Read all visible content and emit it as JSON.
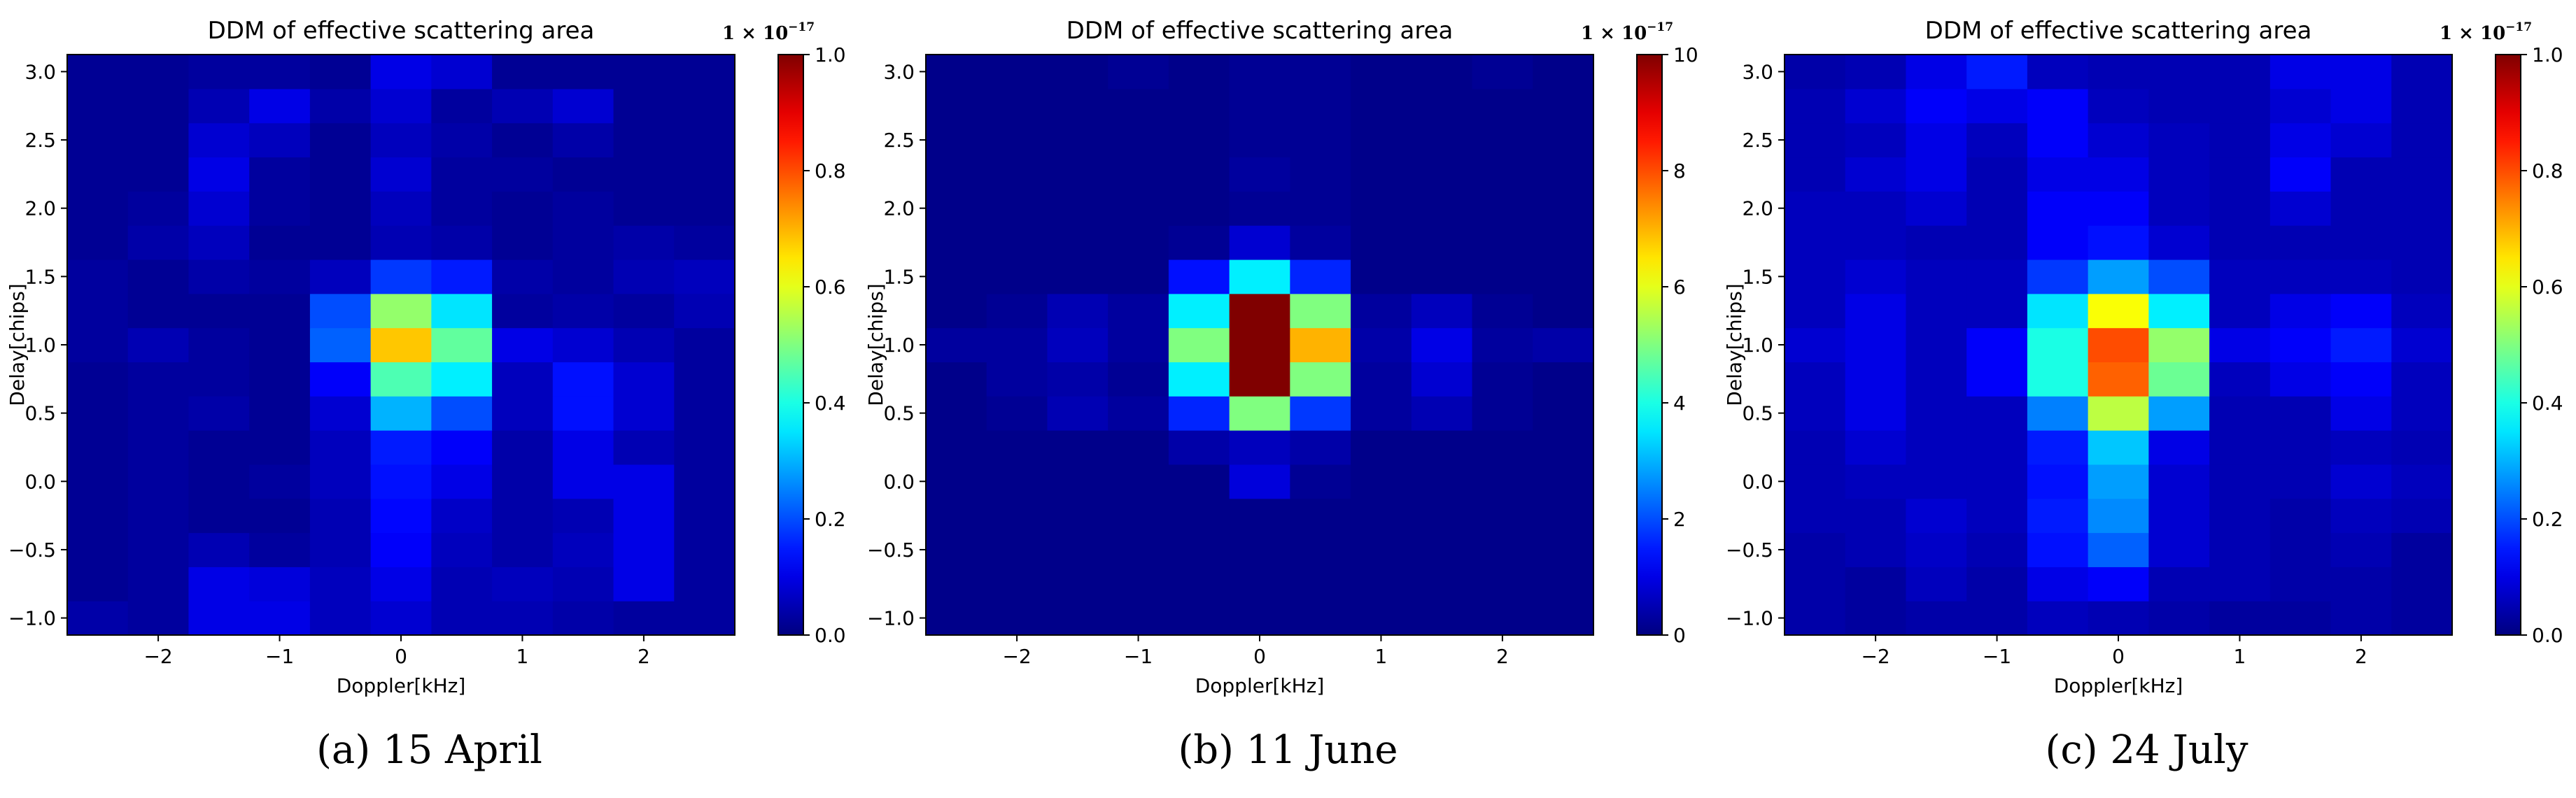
{
  "chart_data": [
    {
      "type": "heatmap",
      "title": "DDM of effective scattering area",
      "xlabel": "Doppler[kHz]",
      "ylabel": "Delay[chips]",
      "caption": "(a) 15 April",
      "xlim": [
        -2.75,
        2.75
      ],
      "ylim": [
        -1.125,
        3.125
      ],
      "x_ticks": [
        -2,
        -1,
        0,
        1,
        2
      ],
      "x_tick_labels": [
        "−2",
        "−1",
        "0",
        "1",
        "2"
      ],
      "y_ticks": [
        -1.0,
        -0.5,
        0.0,
        0.5,
        1.0,
        1.5,
        2.0,
        2.5,
        3.0
      ],
      "y_tick_labels": [
        "−1.0",
        "−0.5",
        "0.0",
        "0.5",
        "1.0",
        "1.5",
        "2.0",
        "2.5",
        "3.0"
      ],
      "doppler_centers": [
        -2.5,
        -2.0,
        -1.5,
        -1.0,
        -0.5,
        0.0,
        0.5,
        1.0,
        1.5,
        2.0,
        2.5
      ],
      "delay_centers": [
        -1.0,
        -0.75,
        -0.5,
        -0.25,
        0.0,
        0.25,
        0.5,
        0.75,
        1.0,
        1.25,
        1.5,
        1.75,
        2.0,
        2.25,
        2.5,
        2.75,
        3.0
      ],
      "colorbar": {
        "min": 0,
        "max": 1.0,
        "ticks": [
          0.0,
          0.2,
          0.4,
          0.6,
          0.8,
          1.0
        ],
        "tick_labels": [
          "0.0",
          "0.2",
          "0.4",
          "0.6",
          "0.8",
          "1.0"
        ],
        "multiplier_base": "1 × 10",
        "multiplier_exp": "−17"
      },
      "values": [
        [
          0.04,
          0.03,
          0.1,
          0.1,
          0.06,
          0.08,
          0.05,
          0.05,
          0.04,
          0.03,
          0.03
        ],
        [
          0.02,
          0.03,
          0.1,
          0.09,
          0.06,
          0.1,
          0.05,
          0.06,
          0.05,
          0.1,
          0.03
        ],
        [
          0.02,
          0.03,
          0.05,
          0.03,
          0.05,
          0.12,
          0.06,
          0.04,
          0.06,
          0.1,
          0.03
        ],
        [
          0.02,
          0.03,
          0.02,
          0.02,
          0.05,
          0.13,
          0.07,
          0.04,
          0.05,
          0.1,
          0.03
        ],
        [
          0.02,
          0.03,
          0.02,
          0.03,
          0.06,
          0.14,
          0.1,
          0.04,
          0.1,
          0.1,
          0.03
        ],
        [
          0.02,
          0.03,
          0.02,
          0.02,
          0.06,
          0.15,
          0.12,
          0.04,
          0.1,
          0.05,
          0.03
        ],
        [
          0.02,
          0.03,
          0.04,
          0.02,
          0.08,
          0.3,
          0.2,
          0.06,
          0.14,
          0.08,
          0.03
        ],
        [
          0.02,
          0.03,
          0.03,
          0.02,
          0.12,
          0.45,
          0.36,
          0.06,
          0.14,
          0.08,
          0.03
        ],
        [
          0.03,
          0.05,
          0.03,
          0.02,
          0.22,
          0.68,
          0.47,
          0.1,
          0.08,
          0.05,
          0.03
        ],
        [
          0.03,
          0.02,
          0.02,
          0.02,
          0.2,
          0.52,
          0.35,
          0.03,
          0.04,
          0.03,
          0.05
        ],
        [
          0.03,
          0.02,
          0.04,
          0.03,
          0.06,
          0.18,
          0.15,
          0.04,
          0.03,
          0.05,
          0.06
        ],
        [
          0.02,
          0.04,
          0.06,
          0.02,
          0.02,
          0.05,
          0.04,
          0.02,
          0.03,
          0.04,
          0.03
        ],
        [
          0.02,
          0.03,
          0.08,
          0.03,
          0.02,
          0.06,
          0.03,
          0.02,
          0.03,
          0.02,
          0.02
        ],
        [
          0.02,
          0.02,
          0.1,
          0.03,
          0.02,
          0.08,
          0.03,
          0.03,
          0.02,
          0.02,
          0.02
        ],
        [
          0.02,
          0.02,
          0.08,
          0.06,
          0.02,
          0.06,
          0.04,
          0.02,
          0.04,
          0.02,
          0.02
        ],
        [
          0.02,
          0.02,
          0.05,
          0.1,
          0.04,
          0.08,
          0.03,
          0.05,
          0.08,
          0.02,
          0.02
        ],
        [
          0.02,
          0.02,
          0.03,
          0.03,
          0.02,
          0.1,
          0.08,
          0.02,
          0.02,
          0.02,
          0.02
        ]
      ]
    },
    {
      "type": "heatmap",
      "title": "DDM of effective scattering area",
      "xlabel": "Doppler[kHz]",
      "ylabel": "Delay[chips]",
      "caption": "(b) 11 June",
      "xlim": [
        -2.75,
        2.75
      ],
      "ylim": [
        -1.125,
        3.125
      ],
      "x_ticks": [
        -2,
        -1,
        0,
        1,
        2
      ],
      "x_tick_labels": [
        "−2",
        "−1",
        "0",
        "1",
        "2"
      ],
      "y_ticks": [
        -1.0,
        -0.5,
        0.0,
        0.5,
        1.0,
        1.5,
        2.0,
        2.5,
        3.0
      ],
      "y_tick_labels": [
        "−1.0",
        "−0.5",
        "0.0",
        "0.5",
        "1.0",
        "1.5",
        "2.0",
        "2.5",
        "3.0"
      ],
      "doppler_centers": [
        -2.5,
        -2.0,
        -1.5,
        -1.0,
        -0.5,
        0.0,
        0.5,
        1.0,
        1.5,
        2.0,
        2.5
      ],
      "delay_centers": [
        -1.0,
        -0.75,
        -0.5,
        -0.25,
        0.0,
        0.25,
        0.5,
        0.75,
        1.0,
        1.25,
        1.5,
        1.75,
        2.0,
        2.25,
        2.5,
        2.75,
        3.0
      ],
      "colorbar": {
        "min": 0,
        "max": 10,
        "ticks": [
          0,
          2,
          4,
          6,
          8,
          10
        ],
        "tick_labels": [
          "0",
          "2",
          "4",
          "6",
          "8",
          "10"
        ],
        "multiplier_base": "1 × 10",
        "multiplier_exp": "−17"
      },
      "values": [
        [
          0.1,
          0.1,
          0.1,
          0.1,
          0.1,
          0.1,
          0.1,
          0.1,
          0.1,
          0.1,
          0.1
        ],
        [
          0.1,
          0.1,
          0.1,
          0.1,
          0.1,
          0.1,
          0.1,
          0.1,
          0.1,
          0.1,
          0.1
        ],
        [
          0.1,
          0.1,
          0.1,
          0.1,
          0.1,
          0.1,
          0.1,
          0.1,
          0.1,
          0.1,
          0.1
        ],
        [
          0.1,
          0.1,
          0.1,
          0.1,
          0.1,
          0.1,
          0.1,
          0.1,
          0.1,
          0.1,
          0.1
        ],
        [
          0.1,
          0.1,
          0.1,
          0.1,
          0.1,
          0.9,
          0.2,
          0.1,
          0.1,
          0.1,
          0.1
        ],
        [
          0.1,
          0.1,
          0.1,
          0.1,
          0.4,
          0.6,
          0.4,
          0.1,
          0.1,
          0.1,
          0.1
        ],
        [
          0.1,
          0.2,
          0.5,
          0.3,
          1.6,
          5.0,
          1.8,
          0.3,
          0.5,
          0.2,
          0.1
        ],
        [
          0.1,
          0.3,
          0.4,
          0.2,
          3.6,
          10.0,
          5.0,
          0.3,
          0.8,
          0.2,
          0.1
        ],
        [
          0.3,
          0.3,
          0.6,
          0.3,
          5.0,
          10.0,
          7.0,
          0.4,
          1.0,
          0.3,
          0.4
        ],
        [
          0.1,
          0.2,
          0.5,
          0.3,
          3.6,
          10.0,
          5.0,
          0.3,
          0.6,
          0.2,
          0.1
        ],
        [
          0.1,
          0.1,
          0.1,
          0.1,
          1.4,
          3.6,
          1.6,
          0.1,
          0.1,
          0.1,
          0.1
        ],
        [
          0.1,
          0.1,
          0.1,
          0.1,
          0.2,
          0.8,
          0.3,
          0.1,
          0.1,
          0.1,
          0.1
        ],
        [
          0.1,
          0.1,
          0.1,
          0.1,
          0.1,
          0.2,
          0.2,
          0.1,
          0.1,
          0.1,
          0.1
        ],
        [
          0.1,
          0.1,
          0.1,
          0.1,
          0.1,
          0.3,
          0.2,
          0.1,
          0.1,
          0.1,
          0.1
        ],
        [
          0.1,
          0.1,
          0.1,
          0.1,
          0.1,
          0.2,
          0.2,
          0.1,
          0.1,
          0.1,
          0.1
        ],
        [
          0.1,
          0.1,
          0.1,
          0.1,
          0.1,
          0.2,
          0.2,
          0.1,
          0.1,
          0.1,
          0.1
        ],
        [
          0.1,
          0.1,
          0.1,
          0.2,
          0.1,
          0.2,
          0.2,
          0.1,
          0.1,
          0.2,
          0.1
        ]
      ]
    },
    {
      "type": "heatmap",
      "title": "DDM of effective scattering area",
      "xlabel": "Doppler[kHz]",
      "ylabel": "Delay[chips]",
      "caption": "(c) 24 July",
      "xlim": [
        -2.75,
        2.75
      ],
      "ylim": [
        -1.125,
        3.125
      ],
      "x_ticks": [
        -2,
        -1,
        0,
        1,
        2
      ],
      "x_tick_labels": [
        "−2",
        "−1",
        "0",
        "1",
        "2"
      ],
      "y_ticks": [
        -1.0,
        -0.5,
        0.0,
        0.5,
        1.0,
        1.5,
        2.0,
        2.5,
        3.0
      ],
      "y_tick_labels": [
        "−1.0",
        "−0.5",
        "0.0",
        "0.5",
        "1.0",
        "1.5",
        "2.0",
        "2.5",
        "3.0"
      ],
      "doppler_centers": [
        -2.5,
        -2.0,
        -1.5,
        -1.0,
        -0.5,
        0.0,
        0.5,
        1.0,
        1.5,
        2.0,
        2.5
      ],
      "delay_centers": [
        -1.0,
        -0.75,
        -0.5,
        -0.25,
        0.0,
        0.25,
        0.5,
        0.75,
        1.0,
        1.25,
        1.5,
        1.75,
        2.0,
        2.25,
        2.5,
        2.75,
        3.0
      ],
      "colorbar": {
        "min": 0,
        "max": 1.0,
        "ticks": [
          0.0,
          0.2,
          0.4,
          0.6,
          0.8,
          1.0
        ],
        "tick_labels": [
          "0.0",
          "0.2",
          "0.4",
          "0.6",
          "0.8",
          "1.0"
        ],
        "multiplier_base": "1 × 10",
        "multiplier_exp": "−17"
      },
      "values": [
        [
          0.04,
          0.03,
          0.04,
          0.04,
          0.06,
          0.05,
          0.04,
          0.03,
          0.03,
          0.04,
          0.03
        ],
        [
          0.04,
          0.03,
          0.06,
          0.04,
          0.1,
          0.12,
          0.05,
          0.05,
          0.04,
          0.04,
          0.03
        ],
        [
          0.04,
          0.05,
          0.07,
          0.05,
          0.14,
          0.22,
          0.08,
          0.05,
          0.04,
          0.05,
          0.03
        ],
        [
          0.05,
          0.05,
          0.08,
          0.06,
          0.15,
          0.26,
          0.08,
          0.05,
          0.04,
          0.06,
          0.05
        ],
        [
          0.05,
          0.06,
          0.06,
          0.06,
          0.14,
          0.28,
          0.08,
          0.05,
          0.05,
          0.08,
          0.06
        ],
        [
          0.05,
          0.08,
          0.06,
          0.06,
          0.15,
          0.32,
          0.1,
          0.05,
          0.05,
          0.06,
          0.05
        ],
        [
          0.06,
          0.1,
          0.06,
          0.06,
          0.25,
          0.56,
          0.28,
          0.05,
          0.05,
          0.1,
          0.06
        ],
        [
          0.06,
          0.1,
          0.06,
          0.12,
          0.4,
          0.78,
          0.48,
          0.06,
          0.1,
          0.12,
          0.06
        ],
        [
          0.08,
          0.1,
          0.06,
          0.12,
          0.4,
          0.8,
          0.52,
          0.1,
          0.12,
          0.15,
          0.08
        ],
        [
          0.06,
          0.1,
          0.06,
          0.06,
          0.35,
          0.62,
          0.36,
          0.06,
          0.1,
          0.12,
          0.06
        ],
        [
          0.06,
          0.08,
          0.06,
          0.06,
          0.18,
          0.28,
          0.2,
          0.06,
          0.06,
          0.06,
          0.05
        ],
        [
          0.06,
          0.06,
          0.05,
          0.05,
          0.12,
          0.14,
          0.08,
          0.05,
          0.05,
          0.05,
          0.05
        ],
        [
          0.06,
          0.06,
          0.08,
          0.05,
          0.12,
          0.12,
          0.06,
          0.05,
          0.08,
          0.05,
          0.05
        ],
        [
          0.05,
          0.08,
          0.1,
          0.05,
          0.1,
          0.1,
          0.06,
          0.05,
          0.12,
          0.05,
          0.05
        ],
        [
          0.05,
          0.06,
          0.1,
          0.06,
          0.12,
          0.08,
          0.06,
          0.05,
          0.1,
          0.08,
          0.05
        ],
        [
          0.05,
          0.08,
          0.12,
          0.1,
          0.12,
          0.06,
          0.05,
          0.05,
          0.08,
          0.1,
          0.05
        ],
        [
          0.04,
          0.05,
          0.1,
          0.15,
          0.06,
          0.05,
          0.05,
          0.05,
          0.1,
          0.1,
          0.05
        ]
      ]
    }
  ]
}
